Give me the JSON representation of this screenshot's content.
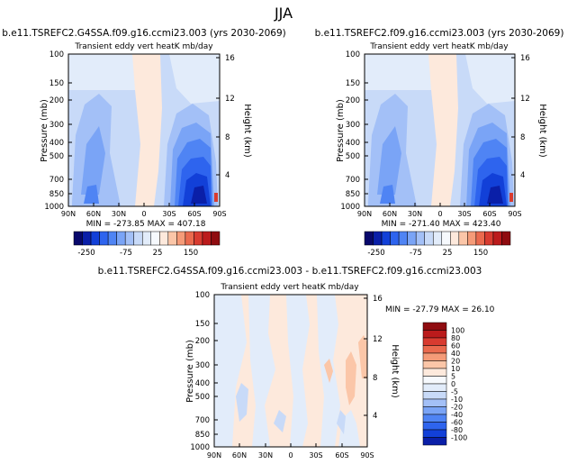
{
  "figure_title": "JJA",
  "chart_data": [
    {
      "type": "heatmap",
      "title": "b.e11.TSREFC2.G4SSA.f09.g16.ccmi23.003 (yrs 2030-2069)",
      "subtitle": "Transient eddy vert heatK mb/day",
      "xlabel": "",
      "ylabel": "Pressure (mb)",
      "ylabel_right": "Height (km)",
      "x_ticks": [
        "90N",
        "60N",
        "30N",
        "0",
        "30S",
        "60S",
        "90S"
      ],
      "y_ticks": [
        "100",
        "150",
        "200",
        "300",
        "400",
        "500",
        "700",
        "850",
        "1000"
      ],
      "y_ticks_right": [
        "16",
        "12",
        "8",
        "4"
      ],
      "yscale": "log",
      "stats": "MIN = -273.85   MAX = 407.18",
      "colorbar": {
        "orientation": "horizontal",
        "labels": [
          "-250",
          "-75",
          "25",
          "150"
        ],
        "colors": [
          "#08086b",
          "#0a1fa8",
          "#1240d8",
          "#2e64ee",
          "#4f84f4",
          "#7aa4f6",
          "#a3c0f7",
          "#c8daf8",
          "#e2ecfa",
          "#f6f9fd",
          "#fde9dc",
          "#fbc6a8",
          "#f59b78",
          "#ea6a4e",
          "#d83b30",
          "#bb1b1c",
          "#8f0c10"
        ]
      },
      "min": -273.85,
      "max": 407.18
    },
    {
      "type": "heatmap",
      "title": "b.e11.TSREFC2.f09.g16.ccmi23.003 (yrs 2030-2069)",
      "subtitle": "Transient eddy vert heatK mb/day",
      "xlabel": "",
      "ylabel": "Pressure (mb)",
      "ylabel_right": "Height (km)",
      "x_ticks": [
        "90N",
        "60N",
        "30N",
        "0",
        "30S",
        "60S",
        "90S"
      ],
      "y_ticks": [
        "100",
        "150",
        "200",
        "300",
        "400",
        "500",
        "700",
        "850",
        "1000"
      ],
      "y_ticks_right": [
        "16",
        "12",
        "8",
        "4"
      ],
      "yscale": "log",
      "stats": "MIN = -271.40   MAX = 423.40",
      "colorbar": {
        "orientation": "horizontal",
        "labels": [
          "-250",
          "-75",
          "25",
          "150"
        ],
        "colors": [
          "#08086b",
          "#0a1fa8",
          "#1240d8",
          "#2e64ee",
          "#4f84f4",
          "#7aa4f6",
          "#a3c0f7",
          "#c8daf8",
          "#e2ecfa",
          "#f6f9fd",
          "#fde9dc",
          "#fbc6a8",
          "#f59b78",
          "#ea6a4e",
          "#d83b30",
          "#bb1b1c",
          "#8f0c10"
        ]
      },
      "min": -271.4,
      "max": 423.4
    },
    {
      "type": "heatmap",
      "title": "b.e11.TSREFC2.G4SSA.f09.g16.ccmi23.003 - b.e11.TSREFC2.f09.g16.ccmi23.003",
      "subtitle": "Transient eddy vert heatK mb/day",
      "xlabel": "",
      "ylabel": "Pressure (mb)",
      "ylabel_right": "Height (km)",
      "x_ticks": [
        "90N",
        "60N",
        "30N",
        "0",
        "30S",
        "60S",
        "90S"
      ],
      "y_ticks": [
        "100",
        "150",
        "200",
        "300",
        "400",
        "500",
        "700",
        "850",
        "1000"
      ],
      "y_ticks_right": [
        "16",
        "12",
        "8",
        "4"
      ],
      "yscale": "log",
      "stats": "MIN = -27.79   MAX = 26.10",
      "colorbar": {
        "orientation": "vertical",
        "labels": [
          "100",
          "80",
          "60",
          "40",
          "20",
          "10",
          "5",
          "0",
          "-5",
          "-10",
          "-20",
          "-40",
          "-60",
          "-80",
          "-100"
        ],
        "colors": [
          "#8f0c10",
          "#bb1b1c",
          "#d83b30",
          "#ea6a4e",
          "#f59b78",
          "#fbc6a8",
          "#fde9dc",
          "#f6f9fd",
          "#e2ecfa",
          "#c8daf8",
          "#a3c0f7",
          "#7aa4f6",
          "#4f84f4",
          "#2e64ee",
          "#1240d8",
          "#0a1fa8"
        ]
      },
      "min": -27.79,
      "max": 26.1
    }
  ]
}
